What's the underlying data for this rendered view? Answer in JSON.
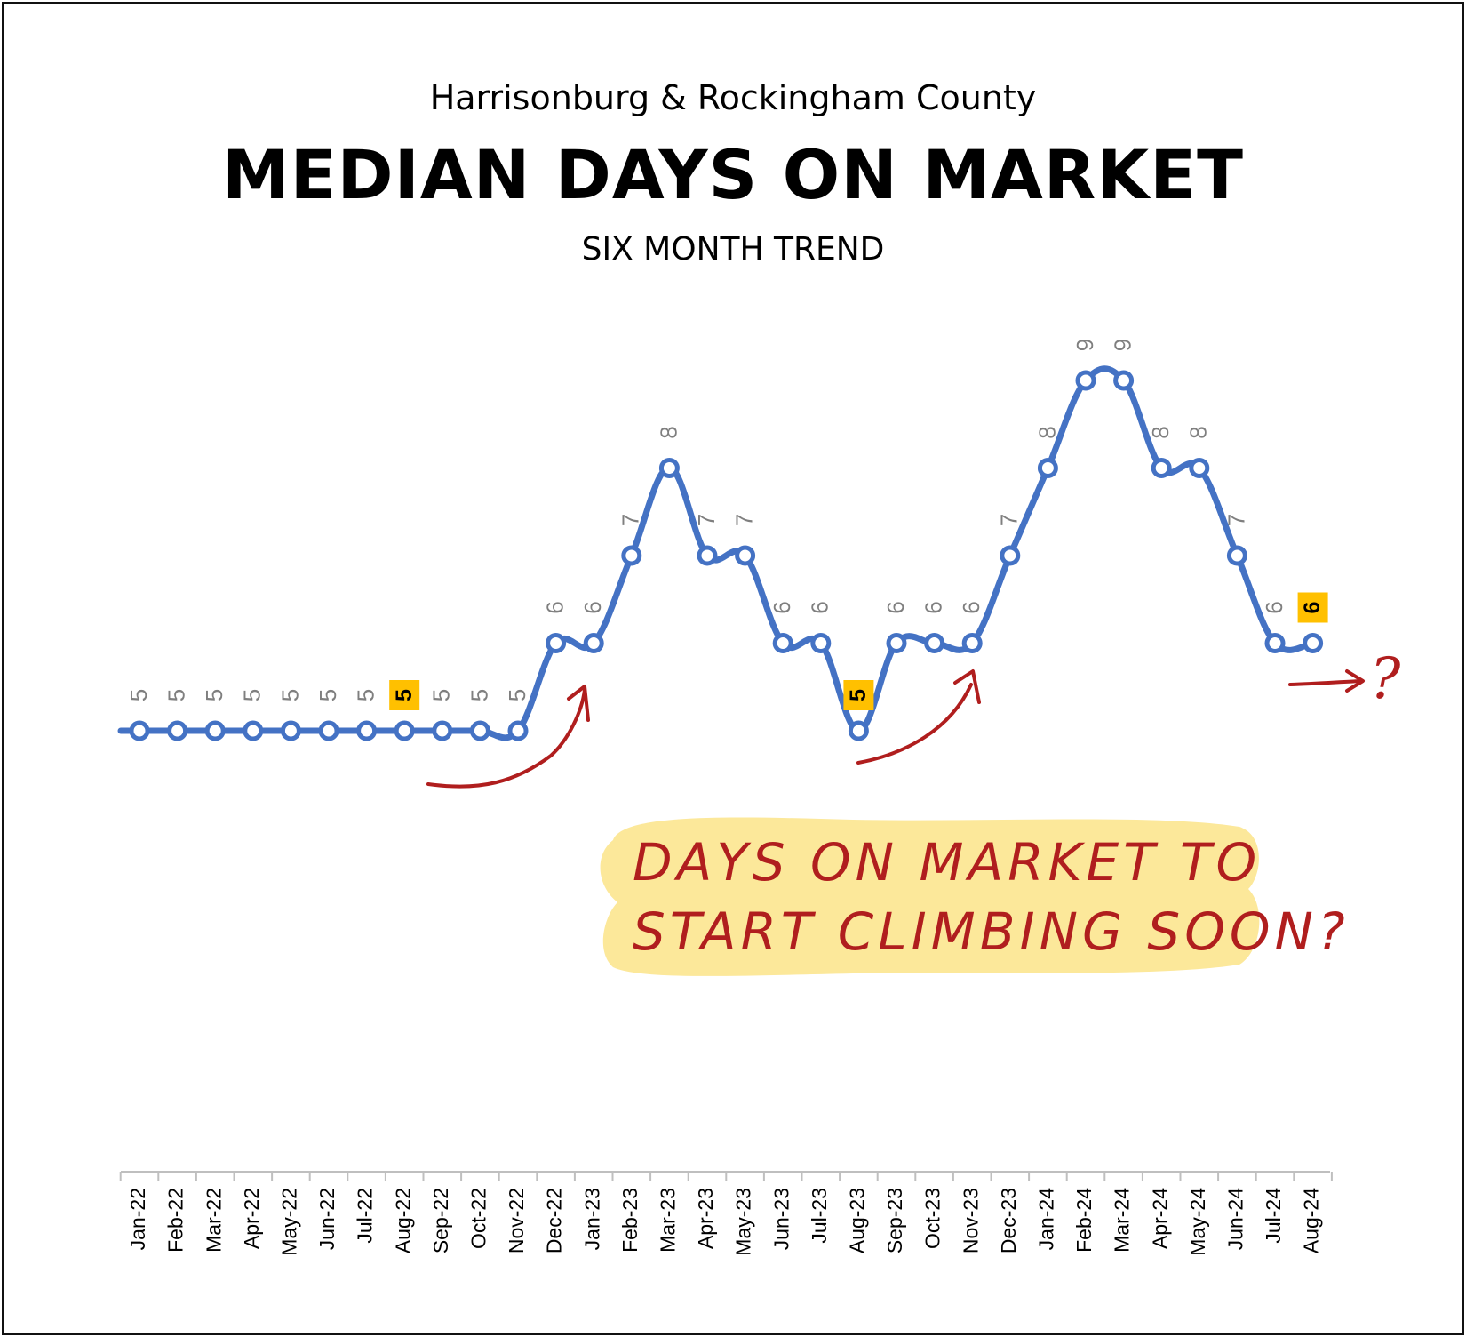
{
  "header": {
    "region": "Harrisonburg & Rockingham County",
    "title": "MEDIAN DAYS ON MARKET",
    "subtitle": "SIX MONTH TREND"
  },
  "annotation": {
    "line1": "DAYS ON MARKET TO",
    "line2": "START CLIMBING SOON?",
    "question": "?"
  },
  "colors": {
    "line": "#4472C4",
    "highlight_badge": "#FFC000",
    "annotation_ink": "#B01E1E",
    "annotation_highlight": "#FCE89A",
    "data_label": "#7F7F7F"
  },
  "chart_data": {
    "type": "line",
    "title": "MEDIAN DAYS ON MARKET",
    "subtitle": "SIX MONTH TREND",
    "xlabel": "",
    "ylabel": "",
    "categories": [
      "Jan-22",
      "Feb-22",
      "Mar-22",
      "Apr-22",
      "May-22",
      "Jun-22",
      "Jul-22",
      "Aug-22",
      "Sep-22",
      "Oct-22",
      "Nov-22",
      "Dec-22",
      "Jan-23",
      "Feb-23",
      "Mar-23",
      "Apr-23",
      "May-23",
      "Jun-23",
      "Jul-23",
      "Aug-23",
      "Sep-23",
      "Oct-23",
      "Nov-23",
      "Dec-23",
      "Jan-24",
      "Feb-24",
      "Mar-24",
      "Apr-24",
      "May-24",
      "Jun-24",
      "Jul-24",
      "Aug-24"
    ],
    "series": [
      {
        "values": [
          5,
          5,
          5,
          5,
          5,
          5,
          5,
          5,
          5,
          5,
          5,
          6,
          6,
          7,
          8,
          7,
          7,
          6,
          6,
          5,
          6,
          6,
          6,
          7,
          8,
          9,
          9,
          8,
          8,
          7,
          6,
          6
        ]
      }
    ],
    "highlighted_categories": [
      "Aug-22",
      "Aug-23",
      "Aug-24"
    ],
    "ylim": [
      0,
      9
    ],
    "grid": false,
    "legend": "none"
  }
}
